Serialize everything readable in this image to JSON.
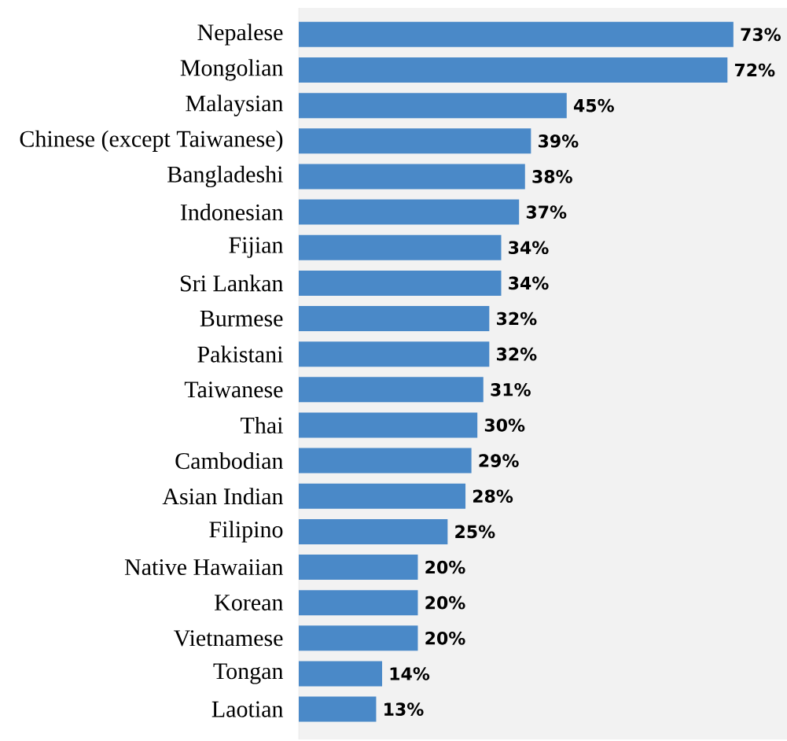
{
  "chart_data": {
    "type": "bar",
    "orientation": "horizontal",
    "categories": [
      "Nepalese",
      "Mongolian",
      "Malaysian",
      "Chinese (except Taiwanese)",
      "Bangladeshi",
      "Indonesian",
      "Fijian",
      "Sri Lankan",
      "Burmese",
      "Pakistani",
      "Taiwanese",
      "Thai",
      "Cambodian",
      "Asian Indian",
      "Filipino",
      "Native Hawaiian",
      "Korean",
      "Vietnamese",
      "Tongan",
      "Laotian"
    ],
    "values": [
      73,
      72,
      45,
      39,
      38,
      37,
      34,
      34,
      32,
      32,
      31,
      30,
      29,
      28,
      25,
      20,
      20,
      20,
      14,
      13
    ],
    "value_labels": [
      "73%",
      "72%",
      "45%",
      "39%",
      "38%",
      "37%",
      "34%",
      "34%",
      "32%",
      "32%",
      "31%",
      "30%",
      "29%",
      "28%",
      "25%",
      "20%",
      "20%",
      "20%",
      "14%",
      "13%"
    ],
    "color": "#4a89c8",
    "xlim": [
      0,
      82
    ],
    "tick_labels": "y"
  }
}
